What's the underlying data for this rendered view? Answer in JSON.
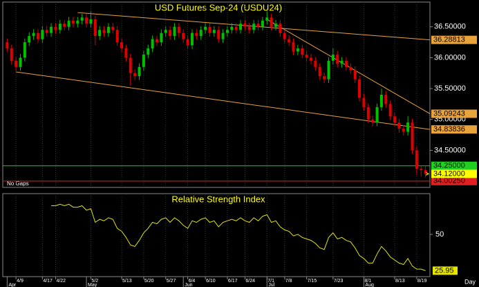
{
  "chart_data": [
    {
      "type": "candlestick",
      "title": "USD Futures Sep-24 (USDU24)",
      "note": "No Gaps",
      "ylim": [
        33.9,
        36.9
      ],
      "yticks": [
        {
          "value": 34.5,
          "label": "34.50000"
        },
        {
          "value": 35,
          "label": "35.00000"
        },
        {
          "value": 35.5,
          "label": "35.50000"
        },
        {
          "value": 36,
          "label": "36.00000"
        },
        {
          "value": 36.5,
          "label": "36.50000"
        }
      ],
      "xlim": [
        -1,
        96
      ],
      "up_color": "#00c000",
      "down_color": "#e00000",
      "open": [
        36.25,
        36.15,
        35.95,
        35.85,
        36.0,
        36.25,
        36.35,
        36.4,
        36.3,
        36.45,
        36.4,
        36.5,
        36.45,
        36.55,
        36.5,
        36.6,
        36.55,
        36.6,
        36.65,
        36.55,
        36.62,
        36.35,
        36.45,
        36.4,
        36.5,
        36.45,
        36.25,
        36.15,
        36.0,
        35.75,
        35.7,
        35.85,
        36.05,
        36.15,
        36.3,
        36.25,
        36.4,
        36.45,
        36.35,
        36.5,
        36.4,
        36.3,
        36.2,
        36.4,
        36.35,
        36.45,
        36.5,
        36.4,
        36.45,
        36.3,
        36.4,
        36.45,
        36.5,
        36.45,
        36.55,
        36.5,
        36.45,
        36.55,
        36.5,
        36.6,
        36.65,
        36.5,
        36.55,
        36.4,
        36.3,
        36.25,
        36.1,
        36.15,
        36.05,
        36.0,
        35.95,
        35.85,
        35.7,
        35.65,
        35.95,
        36.05,
        35.9,
        35.95,
        35.85,
        35.8,
        35.65,
        35.35,
        35.2,
        35.0,
        34.95,
        35.2,
        35.4,
        35.25,
        35.05,
        34.95,
        34.85,
        34.8,
        34.95,
        34.5,
        34.2,
        34.18
      ],
      "high": [
        36.31,
        36.21,
        36.01,
        36.06,
        36.31,
        36.41,
        36.46,
        36.46,
        36.51,
        36.51,
        36.56,
        36.56,
        36.61,
        36.61,
        36.66,
        36.66,
        36.66,
        36.71,
        36.71,
        36.75,
        36.68,
        36.51,
        36.51,
        36.56,
        36.56,
        36.51,
        36.31,
        36.21,
        36.06,
        35.81,
        35.91,
        36.11,
        36.21,
        36.36,
        36.36,
        36.46,
        36.51,
        36.51,
        36.56,
        36.56,
        36.46,
        36.36,
        36.46,
        36.46,
        36.51,
        36.56,
        36.56,
        36.51,
        36.51,
        36.46,
        36.51,
        36.56,
        36.56,
        36.61,
        36.61,
        36.56,
        36.61,
        36.61,
        36.66,
        36.75,
        36.71,
        36.61,
        36.61,
        36.46,
        36.36,
        36.31,
        36.21,
        36.21,
        36.11,
        36.06,
        36.01,
        35.91,
        35.76,
        36.01,
        36.15,
        36.11,
        36.01,
        36.01,
        35.91,
        35.86,
        35.71,
        35.41,
        35.26,
        35.06,
        35.26,
        35.5,
        35.46,
        35.31,
        35.11,
        35.01,
        34.91,
        35.05,
        35.01,
        34.56,
        34.26,
        34.25
      ],
      "low": [
        36.09,
        35.89,
        35.79,
        35.79,
        35.94,
        36.19,
        36.29,
        36.24,
        36.24,
        36.34,
        36.34,
        36.39,
        36.39,
        36.44,
        36.44,
        36.49,
        36.49,
        36.54,
        36.49,
        36.49,
        36.2,
        36.29,
        36.34,
        36.34,
        36.39,
        36.19,
        36.09,
        35.94,
        35.55,
        35.64,
        35.64,
        35.79,
        35.99,
        36.09,
        36.19,
        36.19,
        36.34,
        36.29,
        36.29,
        36.34,
        36.24,
        36.14,
        36.14,
        36.29,
        36.29,
        36.39,
        36.34,
        36.34,
        36.24,
        36.24,
        36.34,
        36.39,
        36.39,
        36.39,
        36.44,
        36.39,
        36.39,
        36.44,
        36.44,
        36.54,
        36.44,
        36.44,
        36.34,
        36.24,
        36.19,
        36.04,
        36.04,
        35.99,
        35.94,
        35.89,
        35.79,
        35.64,
        35.59,
        35.59,
        35.89,
        35.84,
        35.84,
        35.79,
        35.74,
        35.59,
        35.29,
        35.14,
        34.94,
        34.89,
        34.89,
        35.14,
        35.19,
        34.99,
        34.89,
        34.79,
        34.74,
        34.74,
        34.44,
        34.1,
        34.08,
        34.06
      ],
      "close": [
        36.15,
        35.95,
        35.85,
        36.0,
        36.25,
        36.35,
        36.4,
        36.3,
        36.45,
        36.4,
        36.5,
        36.45,
        36.55,
        36.5,
        36.6,
        36.55,
        36.6,
        36.65,
        36.55,
        36.62,
        36.35,
        36.45,
        36.4,
        36.5,
        36.45,
        36.25,
        36.15,
        36.0,
        35.75,
        35.7,
        35.85,
        36.05,
        36.15,
        36.3,
        36.25,
        36.4,
        36.45,
        36.35,
        36.5,
        36.4,
        36.3,
        36.2,
        36.4,
        36.35,
        36.45,
        36.5,
        36.4,
        36.45,
        36.3,
        36.4,
        36.45,
        36.5,
        36.45,
        36.55,
        36.5,
        36.45,
        36.55,
        36.5,
        36.6,
        36.65,
        36.5,
        36.55,
        36.4,
        36.3,
        36.25,
        36.1,
        36.15,
        36.05,
        36.0,
        35.95,
        35.85,
        35.7,
        35.65,
        35.95,
        36.05,
        35.9,
        35.95,
        35.85,
        35.8,
        35.65,
        35.35,
        35.2,
        35.0,
        34.95,
        35.2,
        35.4,
        35.25,
        35.05,
        34.95,
        34.85,
        34.8,
        34.95,
        34.5,
        34.2,
        34.18,
        34.12
      ],
      "trendlines": [
        {
          "x": [
            16,
            96
          ],
          "y": [
            36.73,
            36.28813
          ],
          "label": "36.28813",
          "color": "#e8a33a"
        },
        {
          "x": [
            59,
            96
          ],
          "y": [
            36.62,
            35.09243
          ],
          "label": "35.09243",
          "color": "#e8a33a"
        },
        {
          "x": [
            2,
            96
          ],
          "y": [
            35.77,
            34.83836
          ],
          "label": "34.83836",
          "color": "#e8a33a"
        }
      ],
      "hlines": [
        {
          "value": 34.25,
          "label": "34.25000",
          "color": "#20d020"
        },
        {
          "value": 34.0025,
          "label": "34.00250",
          "color": "#e02020"
        }
      ],
      "last_price": {
        "value": 34.12,
        "label": "34.12000",
        "color": "#ffff00"
      }
    },
    {
      "type": "line",
      "title": "Relative Strength Index",
      "xlabel": "Day",
      "ylim": [
        22,
        77
      ],
      "yticks": [
        50
      ],
      "xlim": [
        -1,
        96
      ],
      "series": [
        {
          "color": "#e6e600",
          "values": [
            null,
            null,
            null,
            null,
            null,
            null,
            null,
            null,
            null,
            null,
            69,
            69,
            70,
            69,
            70,
            68,
            68,
            69,
            66,
            67,
            58,
            60,
            59,
            61,
            60,
            54,
            52,
            48,
            43,
            42,
            46,
            51,
            54,
            58,
            57,
            60,
            61,
            58,
            61,
            59,
            56,
            54,
            59,
            58,
            60,
            61,
            58,
            59,
            55,
            58,
            59,
            60,
            59,
            61,
            59,
            58,
            61,
            59,
            62,
            63,
            58,
            59,
            55,
            53,
            52,
            49,
            50,
            48,
            47,
            46,
            44,
            41,
            40,
            48,
            51,
            47,
            48,
            46,
            45,
            41,
            36,
            34,
            31,
            31,
            37,
            42,
            39,
            35,
            33,
            31,
            30,
            34,
            29,
            27,
            27,
            25.95
          ],
          "last_label": "25.95"
        }
      ],
      "xticks": [
        {
          "value": 2,
          "label": "4/9"
        },
        {
          "value": 8,
          "label": "4/17"
        },
        {
          "value": 11,
          "label": "4/22"
        },
        {
          "value": 19,
          "label": "5/2"
        },
        {
          "value": 26,
          "label": "5/13"
        },
        {
          "value": 31,
          "label": "5/20"
        },
        {
          "value": 36,
          "label": "5/27"
        },
        {
          "value": 41,
          "label": "6/4"
        },
        {
          "value": 45,
          "label": "6/10"
        },
        {
          "value": 50,
          "label": "6/17"
        },
        {
          "value": 54,
          "label": "6/24"
        },
        {
          "value": 59,
          "label": "7/1"
        },
        {
          "value": 63,
          "label": "7/8"
        },
        {
          "value": 68,
          "label": "7/15"
        },
        {
          "value": 74,
          "label": "7/23"
        },
        {
          "value": 81,
          "label": "8/1"
        },
        {
          "value": 88,
          "label": "8/13"
        },
        {
          "value": 93,
          "label": "8/19"
        }
      ],
      "month_ticks": [
        {
          "value": 0,
          "label": "Apr"
        },
        {
          "value": 18,
          "label": "May"
        },
        {
          "value": 40,
          "label": "Jun"
        },
        {
          "value": 59,
          "label": "Jul"
        },
        {
          "value": 81,
          "label": "Aug"
        }
      ]
    }
  ]
}
